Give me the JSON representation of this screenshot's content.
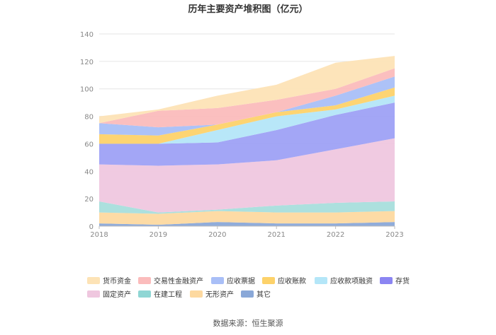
{
  "chart_data": {
    "type": "area",
    "stacked": true,
    "title": "历年主要资产堆积图（亿元）",
    "x": [
      "2018",
      "2019",
      "2020",
      "2021",
      "2022",
      "2023"
    ],
    "ylim": [
      0,
      140
    ],
    "yticks": [
      "0",
      "20",
      "40",
      "60",
      "80",
      "100",
      "120",
      "140"
    ],
    "series": [
      {
        "name": "其它",
        "color": "#8aa8d8",
        "values": [
          2,
          1,
          3,
          2,
          2,
          3
        ]
      },
      {
        "name": "无形资产",
        "color": "#fdd9a0",
        "values": [
          8,
          8,
          8,
          8,
          8,
          8
        ]
      },
      {
        "name": "在建工程",
        "color": "#a8dedc",
        "values": [
          8,
          1,
          1,
          5,
          7,
          7
        ]
      },
      {
        "name": "固定资产",
        "color": "#efc7df",
        "values": [
          27,
          34,
          33,
          33,
          39,
          46
        ]
      },
      {
        "name": "存货",
        "color": "#9ea1f5",
        "values": [
          15,
          16,
          16,
          22,
          25,
          26
        ]
      },
      {
        "name": "应收款项融资",
        "color": "#b4e6f8",
        "values": [
          0,
          0,
          9,
          10,
          4,
          5
        ]
      },
      {
        "name": "应收账款",
        "color": "#fdd26a",
        "values": [
          7,
          6,
          4,
          3,
          3,
          6
        ]
      },
      {
        "name": "应收票据",
        "color": "#a9bff7",
        "values": [
          8,
          6,
          0,
          0,
          7,
          8
        ]
      },
      {
        "name": "交易性金融资产",
        "color": "#fbbcbc",
        "values": [
          0,
          12,
          12,
          9,
          5,
          6
        ]
      },
      {
        "name": "货币资金",
        "color": "#fde3b6",
        "values": [
          5,
          1,
          9,
          11,
          19,
          9
        ]
      }
    ],
    "legend": [
      {
        "name": "货币资金",
        "color": "#fde3b6"
      },
      {
        "name": "交易性金融资产",
        "color": "#fbbcbc"
      },
      {
        "name": "应收票据",
        "color": "#a9bff7"
      },
      {
        "name": "应收账款",
        "color": "#fdd26a"
      },
      {
        "name": "应收款项融资",
        "color": "#b4e6f8"
      },
      {
        "name": "存货",
        "color": "#8b85f2"
      },
      {
        "name": "固定资产",
        "color": "#efc7df"
      },
      {
        "name": "在建工程",
        "color": "#8fd6d4"
      },
      {
        "name": "无形资产",
        "color": "#fdd9a0"
      },
      {
        "name": "其它",
        "color": "#8aa8d8"
      }
    ],
    "legend_position": "bottom",
    "grid": true
  },
  "source": "数据来源：恒生聚源"
}
